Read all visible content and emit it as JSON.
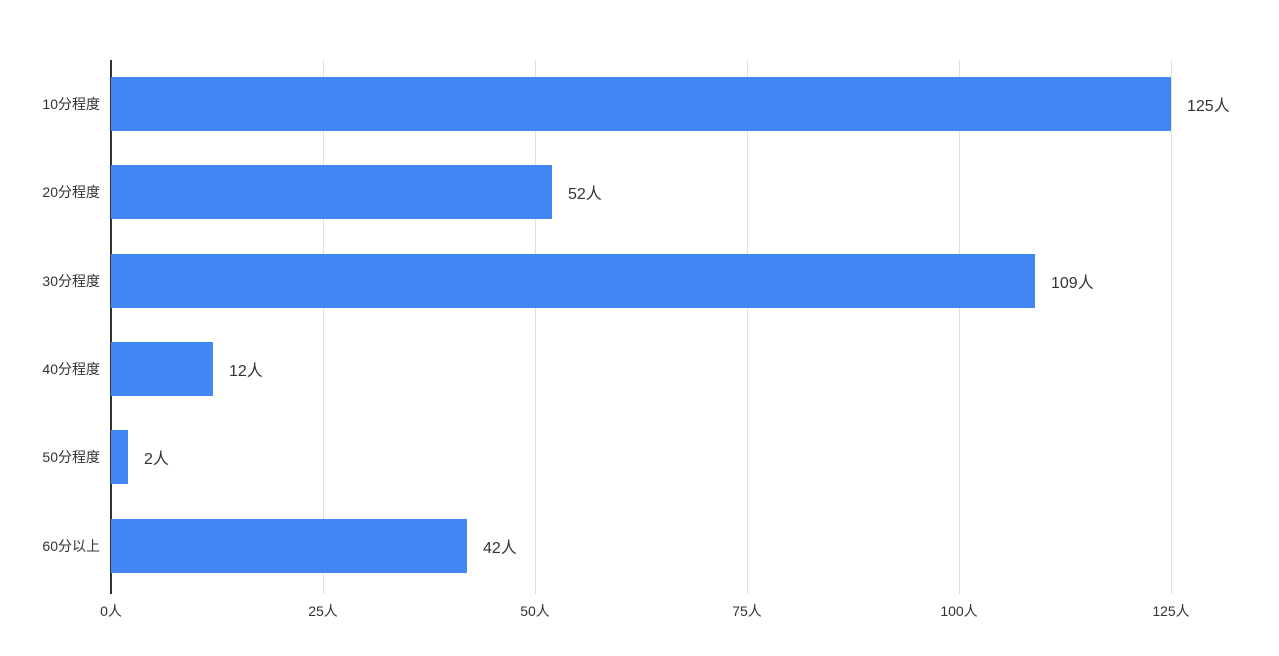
{
  "chart_data": {
    "type": "bar",
    "orientation": "horizontal",
    "title": "",
    "xlabel": "",
    "ylabel": "",
    "unit": "人",
    "categories": [
      "10分程度",
      "20分程度",
      "30分程度",
      "40分程度",
      "50分程度",
      "60分以上"
    ],
    "values": [
      125,
      52,
      109,
      12,
      2,
      42
    ],
    "value_labels": [
      "125人",
      "52人",
      "109人",
      "12人",
      "2人",
      "42人"
    ],
    "xlim": [
      0,
      125
    ],
    "x_ticks": [
      0,
      25,
      50,
      75,
      100,
      125
    ],
    "x_tick_labels": [
      "0人",
      "25人",
      "50人",
      "75人",
      "100人",
      "125人"
    ],
    "grid": true,
    "legend": false,
    "bar_color": "#4285f4",
    "grid_color": "#e0e0e0",
    "axis_color": "#333333",
    "text_color": "#333333",
    "background_color": "#ffffff"
  }
}
